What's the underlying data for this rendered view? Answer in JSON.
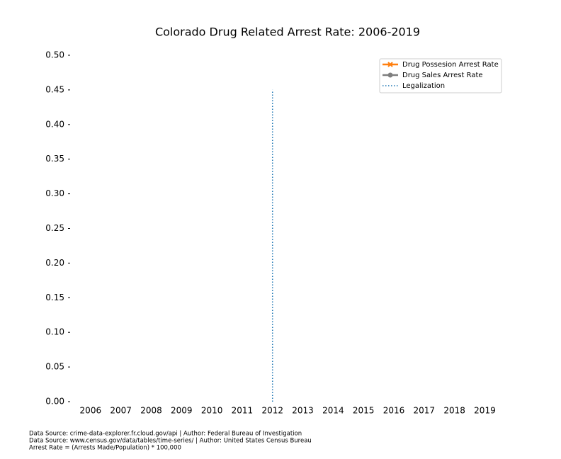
{
  "chart_data": {
    "type": "line",
    "title": "Colorado Drug Related Arrest Rate: 2006-2019",
    "x": [
      2006,
      2007,
      2008,
      2009,
      2010,
      2011,
      2012,
      2013,
      2014,
      2015,
      2016,
      2017,
      2018,
      2019
    ],
    "series": [
      {
        "name": "Drug Possesion Arrest Rate",
        "color": "#ff7f0e",
        "marker": "x",
        "values": [
          null,
          null,
          null,
          null,
          null,
          null,
          null,
          null,
          null,
          null,
          null,
          null,
          null,
          null
        ]
      },
      {
        "name": "Drug Sales Arrest Rate",
        "color": "#7f7f7f",
        "marker": "o",
        "values": [
          null,
          null,
          null,
          null,
          null,
          null,
          null,
          null,
          null,
          null,
          null,
          null,
          null,
          null
        ]
      }
    ],
    "annotation": {
      "name": "Legalization",
      "x": 2012,
      "ymin": 0,
      "ymax": 0.45,
      "color": "#1f77b4",
      "style": "dotted"
    },
    "xlim": [
      2005.35,
      2019.55
    ],
    "xticks": [
      2006,
      2007,
      2008,
      2009,
      2010,
      2011,
      2012,
      2013,
      2014,
      2015,
      2016,
      2017,
      2018,
      2019
    ],
    "ylim": [
      0,
      0.5
    ],
    "yticks": [
      {
        "value": 0,
        "label": "0.00"
      },
      0.05,
      {
        "value": 0.1,
        "label": "0.10"
      },
      0.15,
      {
        "value": 0.2,
        "label": "0.20"
      },
      0.25,
      {
        "value": 0.3,
        "label": "0.30"
      },
      0.35,
      {
        "value": 0.4,
        "label": "0.40"
      },
      0.45,
      {
        "value": 0.5,
        "label": "0.50"
      }
    ],
    "legend": "upper right",
    "notes": [
      "Data Source: crime-data-explorer.fr.cloud.gov/api | Author: Federal Bureau of Investigation",
      "Data Source: www.census.gov/data/tables/time-series/ | Author: United States Census Bureau",
      "Arrest Rate = (Arrests Made/Population) * 100,000"
    ]
  }
}
